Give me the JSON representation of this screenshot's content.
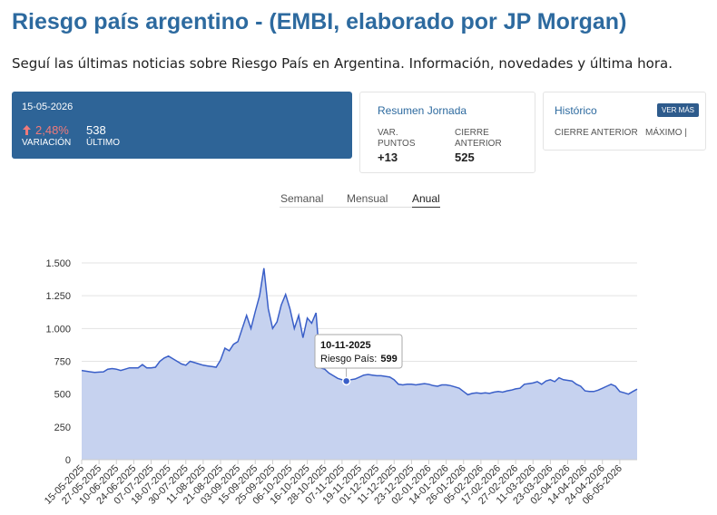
{
  "header": {
    "title": "Riesgo país argentino - (EMBI, elaborado por JP Morgan)",
    "subtitle": "Seguí las últimas noticias sobre Riesgo País en Argentina. Información, novedades y última hora."
  },
  "summary": {
    "date": "15-05-2026",
    "change": "2,48%",
    "change_label": "VARIACIÓN",
    "last": 538,
    "last_label": "ÚLTIMO"
  },
  "day_summary": {
    "title": "Resumen Jornada",
    "points_label": "VAR. PUNTOS",
    "points": "+13",
    "prev_close_label": "CIERRE ANTERIOR",
    "prev_close": 525
  },
  "history": {
    "title": "Histórico",
    "button": "VER MÁS",
    "prev_close_label": "CIERRE ANTERIOR",
    "max_label": "MÁXIMO |"
  },
  "tabs": [
    "Semanal",
    "Mensual",
    "Anual"
  ],
  "chart_data": {
    "type": "area",
    "categories": [
      "15-05-2025",
      null,
      null,
      null,
      "27-05-2025",
      null,
      null,
      null,
      "10-06-2025",
      null,
      null,
      null,
      "24-06-2025",
      null,
      null,
      null,
      "07-07-2025",
      null,
      null,
      null,
      "18-07-2025",
      null,
      null,
      null,
      "30-07-2025",
      null,
      null,
      null,
      "11-08-2025",
      null,
      null,
      null,
      "21-08-2025",
      null,
      null,
      null,
      "03-09-2025",
      null,
      null,
      null,
      "15-09-2025",
      null,
      null,
      null,
      "25-09-2025",
      null,
      null,
      null,
      "06-10-2025",
      null,
      null,
      null,
      "16-10-2025",
      null,
      null,
      null,
      "28-10-2025",
      null,
      null,
      null,
      "07-11-2025",
      null,
      null,
      null,
      "19-11-2025",
      null,
      null,
      null,
      "01-12-2025",
      null,
      null,
      null,
      "11-12-2025",
      null,
      null,
      null,
      "23-12-2025",
      null,
      null,
      null,
      "02-01-2026",
      null,
      null,
      null,
      "14-01-2026",
      null,
      null,
      null,
      "26-01-2026",
      null,
      null,
      null,
      "05-02-2026",
      null,
      null,
      null,
      "17-02-2026",
      null,
      null,
      null,
      "27-02-2026",
      null,
      null,
      null,
      "11-03-2026",
      null,
      null,
      null,
      "23-03-2026",
      null,
      null,
      null,
      "02-04-2026",
      null,
      null,
      null,
      "14-04-2026",
      null,
      null,
      null,
      "24-04-2026",
      null,
      null,
      null,
      "06-05-2026",
      null,
      null,
      null,
      null
    ],
    "series": [
      {
        "name": "Riesgo País",
        "color": "#3a5fc8",
        "fill": "#c6d2ef",
        "values": [
          680,
          675,
          670,
          665,
          668,
          670,
          690,
          695,
          690,
          680,
          690,
          700,
          700,
          700,
          725,
          700,
          700,
          705,
          750,
          775,
          790,
          770,
          750,
          730,
          720,
          750,
          740,
          730,
          720,
          715,
          710,
          705,
          760,
          850,
          830,
          880,
          900,
          1000,
          1100,
          1000,
          1130,
          1250,
          1460,
          1150,
          1000,
          1050,
          1180,
          1260,
          1150,
          1000,
          1100,
          930,
          1080,
          1040,
          1120,
          700,
          690,
          660,
          640,
          620,
          610,
          599,
          610,
          615,
          630,
          645,
          650,
          645,
          640,
          640,
          635,
          630,
          610,
          575,
          570,
          575,
          575,
          570,
          575,
          580,
          575,
          565,
          560,
          570,
          570,
          565,
          555,
          545,
          520,
          495,
          505,
          510,
          505,
          510,
          505,
          515,
          520,
          515,
          525,
          530,
          540,
          545,
          575,
          580,
          585,
          595,
          575,
          600,
          610,
          595,
          625,
          610,
          605,
          600,
          575,
          560,
          525,
          520,
          520,
          530,
          545,
          560,
          575,
          560,
          520,
          510,
          500,
          520,
          538
        ]
      }
    ],
    "ylim": [
      0,
      1500
    ],
    "yticks": [
      0,
      250,
      500,
      750,
      {
        "value": 1000,
        "label": "1.000"
      },
      {
        "value": 1250,
        "label": "1.250"
      },
      {
        "value": 1500,
        "label": "1.500"
      }
    ],
    "grid": true,
    "tooltip": {
      "date": "10-11-2025",
      "label": "Riesgo País:",
      "value": 599
    }
  }
}
